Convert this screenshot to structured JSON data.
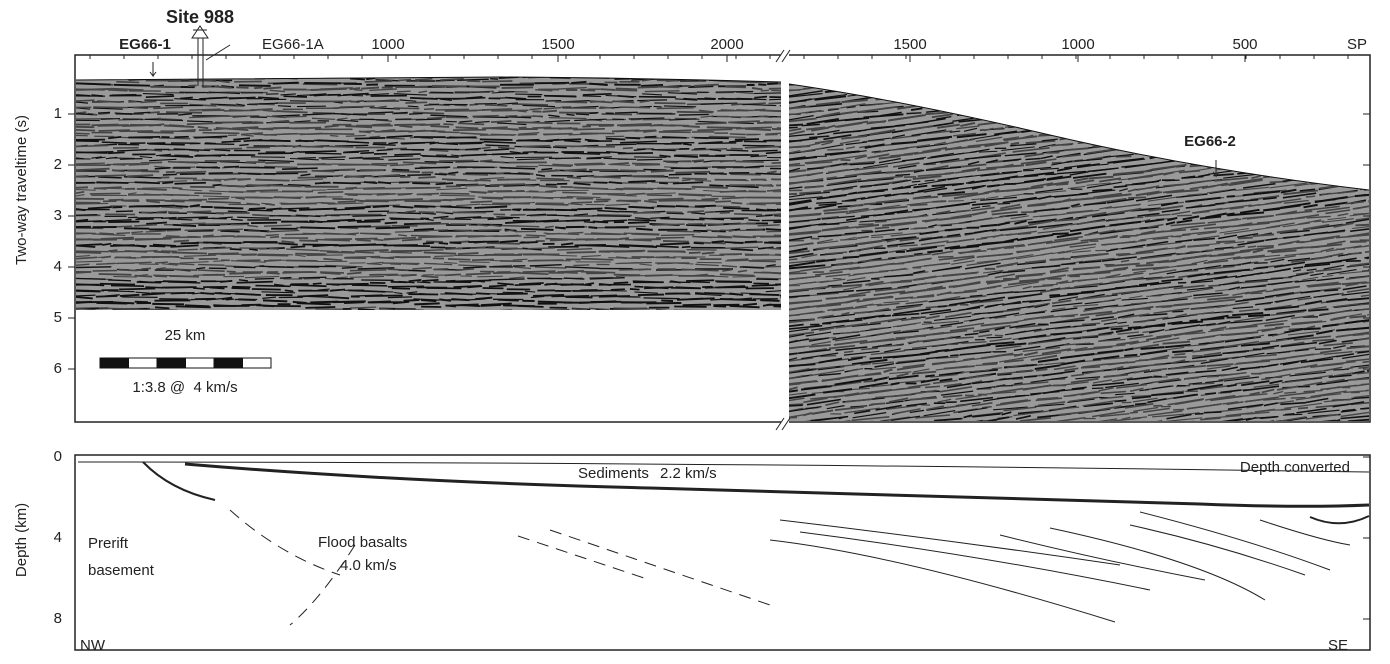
{
  "figure": {
    "site_label": "Site 988",
    "top_axis": {
      "labels": [
        "EG66-1",
        "EG66-1A",
        "1000",
        "1500",
        "2000",
        "1500",
        "1000",
        "500",
        "SP"
      ]
    },
    "top_panel": {
      "y_axis_title": "Two-way traveltime (s)",
      "y_ticks": [
        "1",
        "2",
        "3",
        "4",
        "5",
        "6"
      ],
      "scale_bar": {
        "distance": "25 km",
        "ratio": "1:3.8 @  4 km/s"
      },
      "annotation": "EG66-2"
    },
    "bottom_panel": {
      "y_axis_title": "Depth (km)",
      "y_ticks": [
        "0",
        "4",
        "8"
      ],
      "labels": [
        "Sediments",
        "2.2 km/s",
        "Depth converted",
        "Prerift",
        "basement",
        "Flood basalts",
        "4.0 km/s",
        "NW",
        "SE"
      ]
    }
  }
}
